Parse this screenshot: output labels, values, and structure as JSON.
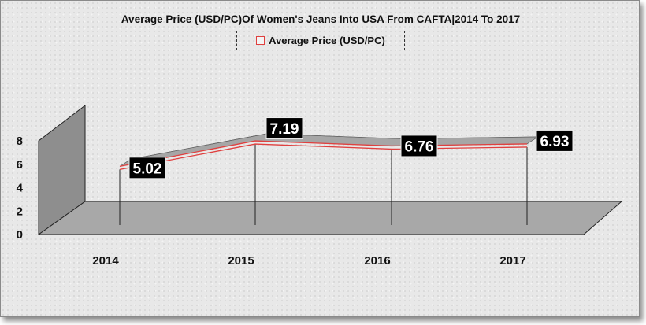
{
  "chart_data": {
    "type": "line",
    "title": "Average Price (USD/PC)Of Women's Jeans Into USA From CAFTA|2014 To 2017",
    "categories": [
      "2014",
      "2015",
      "2016",
      "2017"
    ],
    "series": [
      {
        "name": "Average Price (USD/PC)",
        "values": [
          5.02,
          7.19,
          6.76,
          6.93
        ]
      }
    ],
    "data_labels": [
      "5.02",
      "7.19",
      "6.76",
      "6.93"
    ],
    "y_ticks": [
      "0",
      "2",
      "4",
      "6",
      "8"
    ],
    "ylim": [
      0,
      8
    ],
    "legend_position": "top",
    "style": "3d",
    "colors": {
      "line": "#e0403f",
      "ribbon": "#a6a6a6",
      "label_bg": "#000000"
    }
  }
}
